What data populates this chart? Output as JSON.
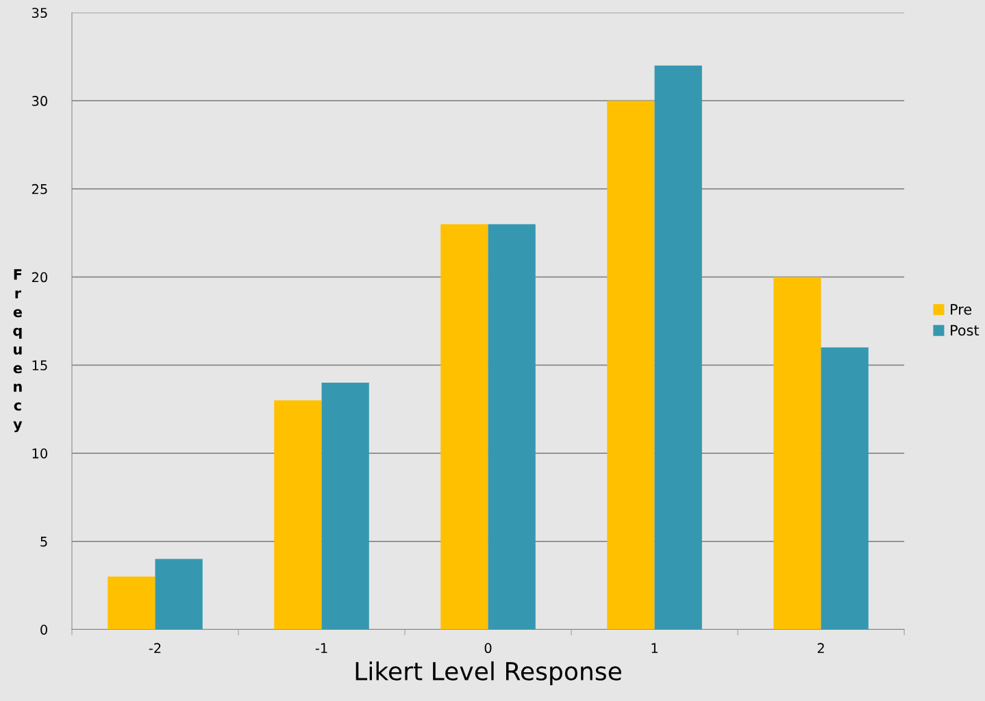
{
  "chart_data": {
    "type": "bar",
    "xlabel": "Likert Level Response",
    "ylabel": "Frequency",
    "categories": [
      "-2",
      "-1",
      "0",
      "1",
      "2"
    ],
    "series": [
      {
        "name": "Pre",
        "color": "#ffc000",
        "values": [
          3,
          13,
          23,
          30,
          20
        ]
      },
      {
        "name": "Post",
        "color": "#3598b0",
        "values": [
          4,
          14,
          23,
          32,
          16
        ]
      }
    ],
    "ylim": [
      0,
      35
    ],
    "yticks": [
      0,
      5,
      10,
      15,
      20,
      25,
      30,
      35
    ],
    "grid": "y",
    "legend": "right"
  }
}
